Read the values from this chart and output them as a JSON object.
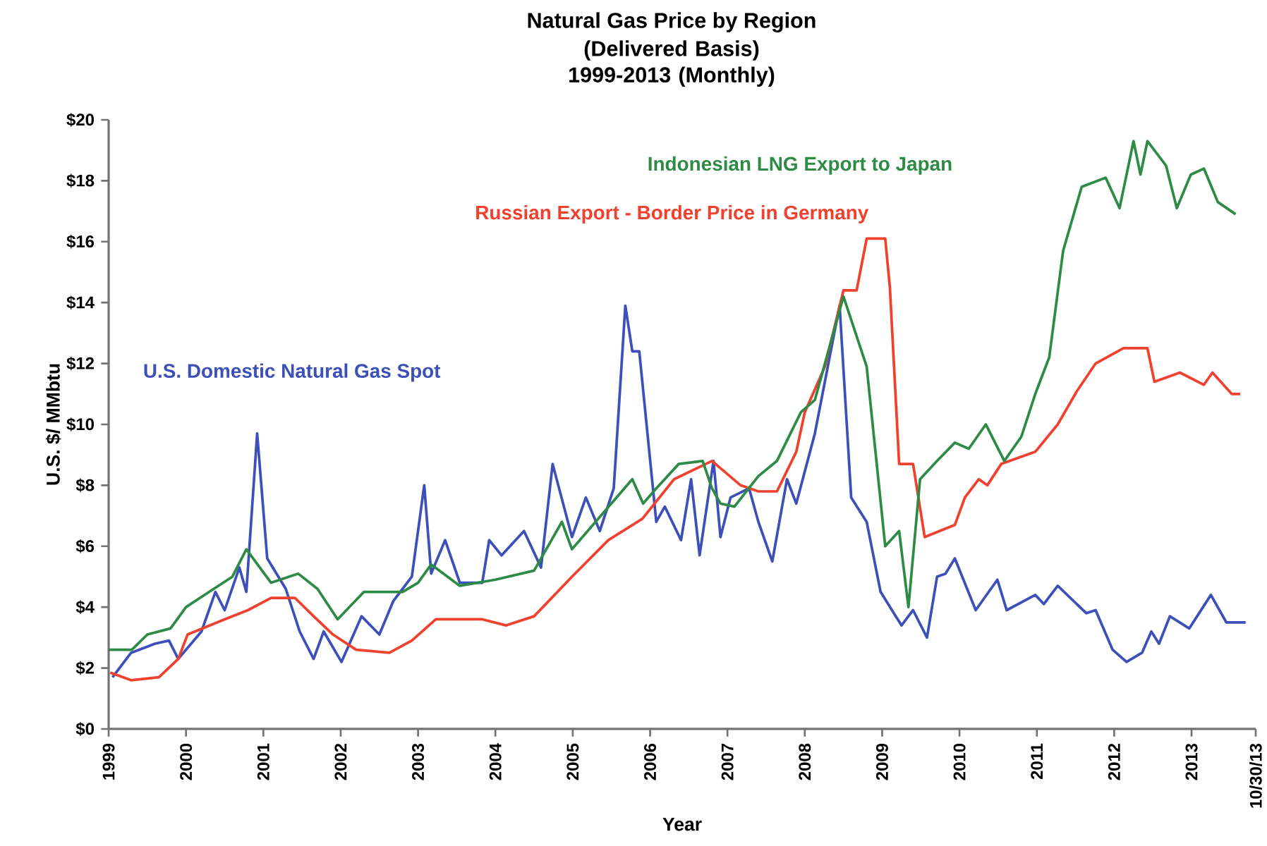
{
  "chart_data": {
    "type": "line",
    "title": "Natural Gas Price by Region",
    "subtitle": "(Delivered Basis) 1999-2013 (Monthly)",
    "xlabel": "Year",
    "ylabel": "U.S. $/ MMbtu",
    "legend": false,
    "grid": false,
    "xlim": [
      1999,
      2013.83
    ],
    "ylim": [
      0,
      20
    ],
    "xticks": [
      1999,
      2000,
      2001,
      2002,
      2003,
      2004,
      2005,
      2006,
      2007,
      2008,
      2009,
      2010,
      2011,
      2012,
      2013,
      {
        "value": 2013.83,
        "label": "10/30/13"
      }
    ],
    "yticks": [
      {
        "value": 0,
        "label": "$0"
      },
      {
        "value": 2,
        "label": "$2"
      },
      {
        "value": 4,
        "label": "$4"
      },
      {
        "value": 6,
        "label": "$6"
      },
      {
        "value": 8,
        "label": "$8"
      },
      {
        "value": 10,
        "label": "$10"
      },
      {
        "value": 12,
        "label": "$12"
      },
      {
        "value": 14,
        "label": "$14"
      },
      {
        "value": 16,
        "label": "$16"
      },
      {
        "value": 18,
        "label": "$18"
      },
      {
        "value": 20,
        "label": "$20"
      }
    ],
    "series": [
      {
        "name": "U.S. Domestic Natural Gas Spot",
        "color": "#3d4fb8",
        "x": [
          1999.05,
          1999.29,
          1999.6,
          1999.78,
          1999.9,
          2000.2,
          2000.38,
          2000.5,
          2000.69,
          2000.78,
          2000.92,
          2001.05,
          2001.29,
          2001.47,
          2001.65,
          2001.78,
          2002.01,
          2002.27,
          2002.5,
          2002.68,
          2002.92,
          2003.08,
          2003.17,
          2003.35,
          2003.54,
          2003.83,
          2003.92,
          2004.08,
          2004.37,
          2004.59,
          2004.74,
          2004.99,
          2005.17,
          2005.35,
          2005.53,
          2005.68,
          2005.77,
          2005.86,
          2006.08,
          2006.19,
          2006.4,
          2006.53,
          2006.64,
          2006.82,
          2006.91,
          2007.04,
          2007.28,
          2007.4,
          2007.58,
          2007.77,
          2007.89,
          2008.13,
          2008.45,
          2008.6,
          2008.8,
          2008.98,
          2009.25,
          2009.4,
          2009.58,
          2009.71,
          2009.82,
          2009.94,
          2010.21,
          2010.49,
          2010.61,
          2010.98,
          2011.09,
          2011.27,
          2011.64,
          2011.76,
          2011.98,
          2012.16,
          2012.36,
          2012.48,
          2012.58,
          2012.72,
          2012.97,
          2013.25,
          2013.45,
          2013.7
        ],
        "values": [
          1.7,
          2.5,
          2.8,
          2.9,
          2.3,
          3.2,
          4.5,
          3.9,
          5.3,
          4.5,
          9.7,
          5.6,
          4.6,
          3.2,
          2.3,
          3.2,
          2.2,
          3.7,
          3.1,
          4.2,
          5.0,
          8.0,
          5.1,
          6.2,
          4.8,
          4.8,
          6.2,
          5.7,
          6.5,
          5.3,
          8.7,
          6.3,
          7.6,
          6.5,
          7.9,
          13.9,
          12.4,
          12.4,
          6.8,
          7.3,
          6.2,
          8.2,
          5.7,
          8.8,
          6.3,
          7.6,
          7.9,
          6.8,
          5.5,
          8.2,
          7.4,
          9.7,
          13.9,
          7.6,
          6.8,
          4.5,
          3.4,
          3.9,
          3.0,
          5.0,
          5.1,
          5.6,
          3.9,
          4.9,
          3.9,
          4.4,
          4.1,
          4.7,
          3.8,
          3.9,
          2.6,
          2.2,
          2.5,
          3.2,
          2.8,
          3.7,
          3.3,
          4.4,
          3.5,
          3.5
        ]
      },
      {
        "name": "Russian Export - Border Price in Germany",
        "color": "#f0402e",
        "x": [
          1999.02,
          1999.29,
          1999.65,
          1999.9,
          2000.02,
          2000.5,
          2000.8,
          2001.1,
          2001.41,
          2001.65,
          2001.9,
          2002.2,
          2002.63,
          2002.92,
          2003.23,
          2003.83,
          2004.14,
          2004.5,
          2004.99,
          2005.46,
          2005.9,
          2006.31,
          2006.8,
          2007.17,
          2007.4,
          2007.64,
          2007.89,
          2008.0,
          2008.26,
          2008.5,
          2008.67,
          2008.8,
          2009.04,
          2009.1,
          2009.22,
          2009.4,
          2009.55,
          2009.94,
          2010.07,
          2010.25,
          2010.36,
          2010.54,
          2010.98,
          2011.27,
          2011.52,
          2011.76,
          2012.12,
          2012.43,
          2012.52,
          2012.85,
          2013.16,
          2013.27,
          2013.52,
          2013.63
        ],
        "values": [
          1.85,
          1.6,
          1.7,
          2.3,
          3.1,
          3.6,
          3.9,
          4.3,
          4.3,
          3.7,
          3.1,
          2.6,
          2.5,
          2.9,
          3.6,
          3.6,
          3.4,
          3.7,
          5.0,
          6.2,
          6.9,
          8.2,
          8.8,
          8.0,
          7.8,
          7.8,
          9.1,
          10.4,
          11.9,
          14.4,
          14.4,
          16.1,
          16.1,
          14.5,
          8.7,
          8.7,
          6.3,
          6.7,
          7.6,
          8.2,
          8.0,
          8.7,
          9.1,
          10.0,
          11.1,
          12.0,
          12.5,
          12.5,
          11.4,
          11.7,
          11.3,
          11.7,
          11.0,
          11.0
        ]
      },
      {
        "name": "Indonesian LNG Export to Japan",
        "color": "#2e8b45",
        "x": [
          1999.0,
          1999.3,
          1999.5,
          1999.8,
          2000.0,
          2000.3,
          2000.6,
          2000.78,
          2001.1,
          2001.45,
          2001.7,
          2001.96,
          2002.3,
          2002.8,
          2003.0,
          2003.17,
          2003.54,
          2004.0,
          2004.5,
          2004.86,
          2004.99,
          2005.77,
          2005.91,
          2006.08,
          2006.37,
          2006.68,
          2006.8,
          2006.91,
          2007.09,
          2007.4,
          2007.64,
          2007.95,
          2008.13,
          2008.5,
          2008.8,
          2009.04,
          2009.22,
          2009.34,
          2009.49,
          2009.71,
          2009.94,
          2010.12,
          2010.34,
          2010.58,
          2010.8,
          2010.98,
          2011.16,
          2011.34,
          2011.58,
          2011.89,
          2012.07,
          2012.25,
          2012.34,
          2012.43,
          2012.67,
          2012.81,
          2012.99,
          2013.16,
          2013.34,
          2013.57
        ],
        "values": [
          2.6,
          2.6,
          3.1,
          3.3,
          4.0,
          4.5,
          5.0,
          5.9,
          4.8,
          5.1,
          4.6,
          3.6,
          4.5,
          4.5,
          4.8,
          5.4,
          4.7,
          4.9,
          5.2,
          6.8,
          5.9,
          8.2,
          7.4,
          7.9,
          8.7,
          8.8,
          7.9,
          7.4,
          7.3,
          8.3,
          8.8,
          10.4,
          10.8,
          14.2,
          11.9,
          6.0,
          6.5,
          4.0,
          8.2,
          8.8,
          9.4,
          9.2,
          10.0,
          8.8,
          9.6,
          11.0,
          12.2,
          15.7,
          17.8,
          18.1,
          17.1,
          19.3,
          18.2,
          19.3,
          18.5,
          17.1,
          18.2,
          18.4,
          17.3,
          16.9
        ]
      }
    ]
  }
}
